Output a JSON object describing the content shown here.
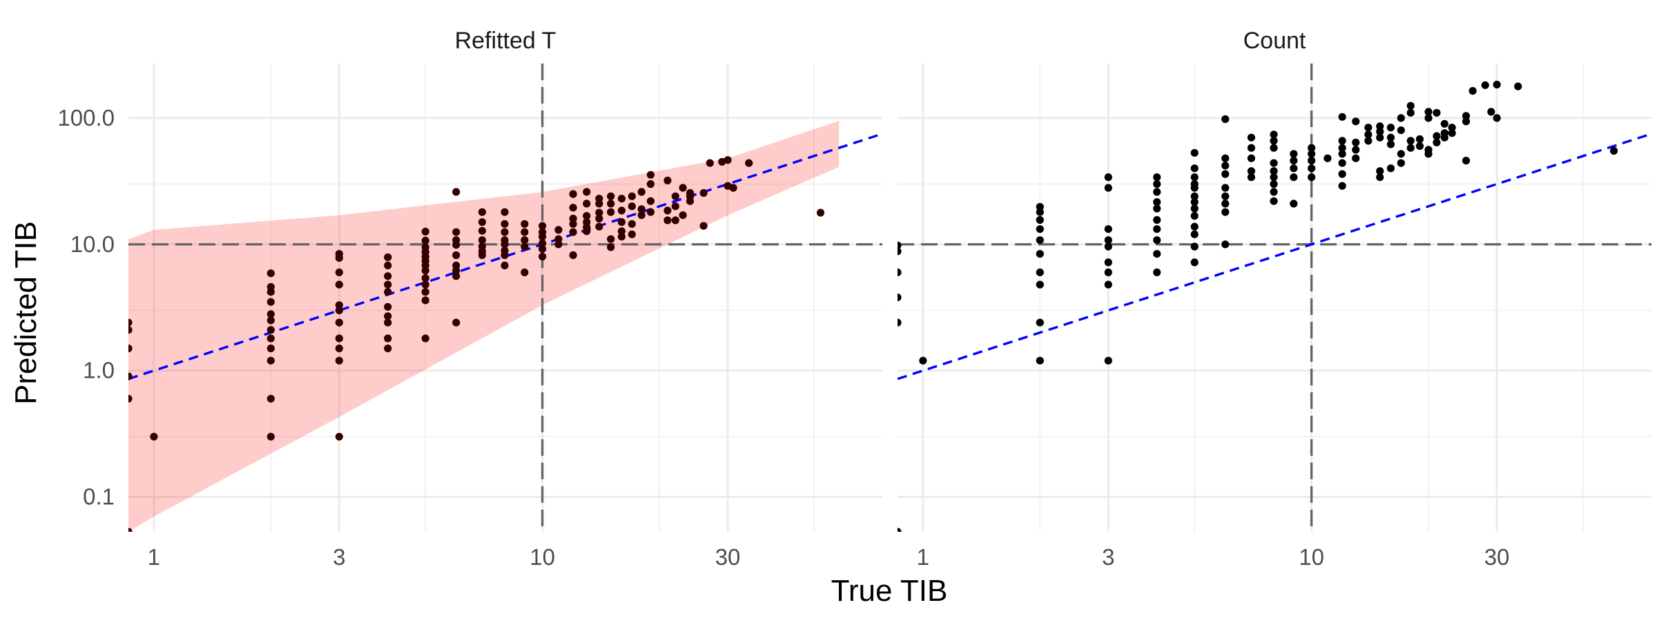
{
  "chart_data": {
    "type": "scatter",
    "xlabel": "True TIB",
    "ylabel": "Predicted TIB",
    "x_scale": "log10",
    "y_scale": "log10",
    "xlim": [
      0.86,
      75
    ],
    "ylim": [
      0.053,
      270
    ],
    "x_ticks": [
      {
        "value": 1,
        "label": "1"
      },
      {
        "value": 3,
        "label": "3"
      },
      {
        "value": 10,
        "label": "10"
      },
      {
        "value": 30,
        "label": "30"
      }
    ],
    "y_ticks": [
      {
        "value": 0.1,
        "label": "0.1"
      },
      {
        "value": 1,
        "label": "1.0"
      },
      {
        "value": 10,
        "label": "10.0"
      },
      {
        "value": 100,
        "label": "100.0"
      }
    ],
    "reference_lines": {
      "x": 10,
      "y": 10,
      "diagonal": "y = x"
    },
    "colors": {
      "diagonal": "#0000ff",
      "reference": "#666666",
      "band": "#ff0000",
      "points_left": "#330000",
      "points_right": "#000000"
    },
    "panels": [
      {
        "strip_title": "Refitted T",
        "band": {
          "x": [
            0.86,
            1,
            3,
            10,
            30,
            58
          ],
          "lower": [
            0.053,
            0.07,
            0.43,
            3.3,
            17,
            41
          ],
          "upper": [
            11,
            13,
            17,
            26,
            48,
            95
          ]
        },
        "points": [
          [
            0.86,
            0.053
          ],
          [
            0.86,
            0.6
          ],
          [
            0.86,
            0.9
          ],
          [
            0.86,
            1.5
          ],
          [
            0.86,
            2.1
          ],
          [
            0.86,
            2.4
          ],
          [
            1,
            0.3
          ],
          [
            2,
            0.3
          ],
          [
            2,
            0.6
          ],
          [
            2,
            1.2
          ],
          [
            2,
            1.5
          ],
          [
            2,
            1.8
          ],
          [
            2,
            2.1
          ],
          [
            2,
            2.5
          ],
          [
            2,
            2.8
          ],
          [
            2,
            3.5
          ],
          [
            2,
            4.2
          ],
          [
            2,
            4.6
          ],
          [
            2,
            5.9
          ],
          [
            3,
            0.3
          ],
          [
            3,
            1.2
          ],
          [
            3,
            1.5
          ],
          [
            3,
            1.8
          ],
          [
            3,
            2.4
          ],
          [
            3,
            3
          ],
          [
            3,
            3.3
          ],
          [
            3,
            4.8
          ],
          [
            3,
            6
          ],
          [
            3,
            7.8
          ],
          [
            3,
            8.4
          ],
          [
            4,
            1.5
          ],
          [
            4,
            1.8
          ],
          [
            4,
            2.4
          ],
          [
            4,
            2.7
          ],
          [
            4,
            3.2
          ],
          [
            4,
            4.2
          ],
          [
            4,
            4.8
          ],
          [
            4,
            5.6
          ],
          [
            4,
            6.8
          ],
          [
            4,
            7.9
          ],
          [
            5,
            1.8
          ],
          [
            5,
            3.6
          ],
          [
            5,
            4.2
          ],
          [
            5,
            4.8
          ],
          [
            5,
            5.4
          ],
          [
            5,
            6.2
          ],
          [
            5,
            6.8
          ],
          [
            5,
            7.4
          ],
          [
            5,
            8
          ],
          [
            5,
            8.7
          ],
          [
            5,
            9.5
          ],
          [
            5,
            10.7
          ],
          [
            5,
            12.6
          ],
          [
            6,
            2.4
          ],
          [
            6,
            5.6
          ],
          [
            6,
            6.2
          ],
          [
            6,
            6.8
          ],
          [
            6,
            8.2
          ],
          [
            6,
            9.9
          ],
          [
            6,
            10.8
          ],
          [
            6,
            12.5
          ],
          [
            6,
            26
          ],
          [
            7,
            8.2
          ],
          [
            7,
            8.8
          ],
          [
            7,
            9.6
          ],
          [
            7,
            10.8
          ],
          [
            7,
            12.8
          ],
          [
            7,
            15
          ],
          [
            7,
            18
          ],
          [
            8,
            6.8
          ],
          [
            8,
            8.2
          ],
          [
            8,
            8.9
          ],
          [
            8,
            10
          ],
          [
            8,
            10.8
          ],
          [
            8,
            12.5
          ],
          [
            8,
            14.5
          ],
          [
            8,
            18
          ],
          [
            9,
            6
          ],
          [
            9,
            9.6
          ],
          [
            9,
            10.8
          ],
          [
            9,
            12.5
          ],
          [
            9,
            14.5
          ],
          [
            10,
            8
          ],
          [
            10,
            9.2
          ],
          [
            10,
            10.2
          ],
          [
            10,
            11.5
          ],
          [
            10,
            12.5
          ],
          [
            10,
            14
          ],
          [
            11,
            10
          ],
          [
            11,
            11
          ],
          [
            11,
            13
          ],
          [
            12,
            8.2
          ],
          [
            12,
            12.5
          ],
          [
            12,
            14.5
          ],
          [
            12,
            16
          ],
          [
            12,
            19.5
          ],
          [
            12,
            25
          ],
          [
            13,
            12.7
          ],
          [
            13,
            13.7
          ],
          [
            13,
            15
          ],
          [
            13,
            16.8
          ],
          [
            13,
            21
          ],
          [
            13,
            26
          ],
          [
            14,
            13.8
          ],
          [
            14,
            16
          ],
          [
            14,
            17.8
          ],
          [
            14,
            21
          ],
          [
            14,
            23
          ],
          [
            15,
            9.5
          ],
          [
            15,
            11
          ],
          [
            15,
            18
          ],
          [
            15,
            21
          ],
          [
            15,
            24
          ],
          [
            16,
            11.5
          ],
          [
            16,
            12.7
          ],
          [
            16,
            15
          ],
          [
            16,
            18.5
          ],
          [
            16,
            23
          ],
          [
            17,
            12
          ],
          [
            17,
            14.5
          ],
          [
            17,
            20
          ],
          [
            17,
            24
          ],
          [
            18,
            17
          ],
          [
            18,
            19
          ],
          [
            18,
            26
          ],
          [
            19,
            18
          ],
          [
            19,
            22
          ],
          [
            19,
            30
          ],
          [
            19,
            35.5
          ],
          [
            21,
            15.5
          ],
          [
            21,
            18.5
          ],
          [
            21,
            32
          ],
          [
            22,
            15.5
          ],
          [
            22,
            20
          ],
          [
            22,
            24
          ],
          [
            23,
            17
          ],
          [
            23,
            28
          ],
          [
            24,
            22
          ],
          [
            24,
            24
          ],
          [
            24,
            25.5
          ],
          [
            26,
            14
          ],
          [
            26,
            25.5
          ],
          [
            27,
            44
          ],
          [
            29,
            45
          ],
          [
            30,
            29
          ],
          [
            30,
            46.5
          ],
          [
            31,
            28
          ],
          [
            34,
            44
          ],
          [
            52,
            17.8
          ]
        ]
      },
      {
        "strip_title": "Count",
        "points": [
          [
            0.86,
            0.053
          ],
          [
            0.86,
            2.4
          ],
          [
            0.86,
            3.8
          ],
          [
            0.86,
            6
          ],
          [
            0.86,
            8.8
          ],
          [
            0.86,
            9.8
          ],
          [
            1,
            1.2
          ],
          [
            2,
            1.2
          ],
          [
            2,
            2.4
          ],
          [
            2,
            4.8
          ],
          [
            2,
            6
          ],
          [
            2,
            8.4
          ],
          [
            2,
            10.8
          ],
          [
            2,
            13.2
          ],
          [
            2,
            15.6
          ],
          [
            2,
            18
          ],
          [
            2,
            19.8
          ],
          [
            3,
            1.2
          ],
          [
            3,
            4.8
          ],
          [
            3,
            6
          ],
          [
            3,
            7.2
          ],
          [
            3,
            9.6
          ],
          [
            3,
            10.8
          ],
          [
            3,
            13.2
          ],
          [
            3,
            28
          ],
          [
            3,
            34
          ],
          [
            4,
            6
          ],
          [
            4,
            8.4
          ],
          [
            4,
            10.8
          ],
          [
            4,
            13.2
          ],
          [
            4,
            15.6
          ],
          [
            4,
            19.2
          ],
          [
            4,
            21.6
          ],
          [
            4,
            26
          ],
          [
            4,
            30
          ],
          [
            4,
            34
          ],
          [
            5,
            7.2
          ],
          [
            5,
            9.6
          ],
          [
            5,
            12
          ],
          [
            5,
            13.8
          ],
          [
            5,
            16.8
          ],
          [
            5,
            19.2
          ],
          [
            5,
            21.6
          ],
          [
            5,
            24
          ],
          [
            5,
            28
          ],
          [
            5,
            30
          ],
          [
            5,
            34
          ],
          [
            5,
            40
          ],
          [
            5,
            53
          ],
          [
            6,
            10
          ],
          [
            6,
            18
          ],
          [
            6,
            21
          ],
          [
            6,
            24
          ],
          [
            6,
            28
          ],
          [
            6,
            36
          ],
          [
            6,
            42
          ],
          [
            6,
            48
          ],
          [
            6,
            98
          ],
          [
            7,
            34
          ],
          [
            7,
            38
          ],
          [
            7,
            48
          ],
          [
            7,
            58
          ],
          [
            7,
            70
          ],
          [
            8,
            22
          ],
          [
            8,
            26
          ],
          [
            8,
            30
          ],
          [
            8,
            34
          ],
          [
            8,
            38
          ],
          [
            8,
            44
          ],
          [
            8,
            58
          ],
          [
            8,
            66
          ],
          [
            8,
            74
          ],
          [
            9,
            21
          ],
          [
            9,
            34
          ],
          [
            9,
            40
          ],
          [
            9,
            46
          ],
          [
            9,
            52
          ],
          [
            10,
            34
          ],
          [
            10,
            40
          ],
          [
            10,
            46
          ],
          [
            10,
            52
          ],
          [
            10,
            58
          ],
          [
            11,
            48
          ],
          [
            12,
            29
          ],
          [
            12,
            36
          ],
          [
            12,
            44
          ],
          [
            12,
            52
          ],
          [
            12,
            58
          ],
          [
            12,
            66
          ],
          [
            12,
            102
          ],
          [
            13,
            48
          ],
          [
            13,
            56
          ],
          [
            13,
            64
          ],
          [
            13,
            94
          ],
          [
            14,
            66
          ],
          [
            14,
            74
          ],
          [
            14,
            84
          ],
          [
            15,
            34
          ],
          [
            15,
            38
          ],
          [
            15,
            70
          ],
          [
            15,
            78
          ],
          [
            15,
            86
          ],
          [
            16,
            40
          ],
          [
            16,
            62
          ],
          [
            16,
            70
          ],
          [
            16,
            84
          ],
          [
            17,
            44
          ],
          [
            17,
            52
          ],
          [
            17,
            80
          ],
          [
            17,
            100
          ],
          [
            18,
            58
          ],
          [
            18,
            66
          ],
          [
            18,
            110
          ],
          [
            18,
            125
          ],
          [
            19,
            60
          ],
          [
            19,
            68
          ],
          [
            20,
            52
          ],
          [
            20,
            56
          ],
          [
            20,
            100
          ],
          [
            20,
            112
          ],
          [
            21,
            64
          ],
          [
            21,
            72
          ],
          [
            21,
            110
          ],
          [
            22,
            70
          ],
          [
            22,
            76
          ],
          [
            22,
            90
          ],
          [
            23,
            76
          ],
          [
            23,
            84
          ],
          [
            25,
            46
          ],
          [
            25,
            94
          ],
          [
            25,
            104
          ],
          [
            26,
            164
          ],
          [
            28,
            182
          ],
          [
            29,
            112
          ],
          [
            30,
            100
          ],
          [
            30,
            184
          ],
          [
            34,
            178
          ],
          [
            60,
            55
          ]
        ]
      }
    ]
  }
}
